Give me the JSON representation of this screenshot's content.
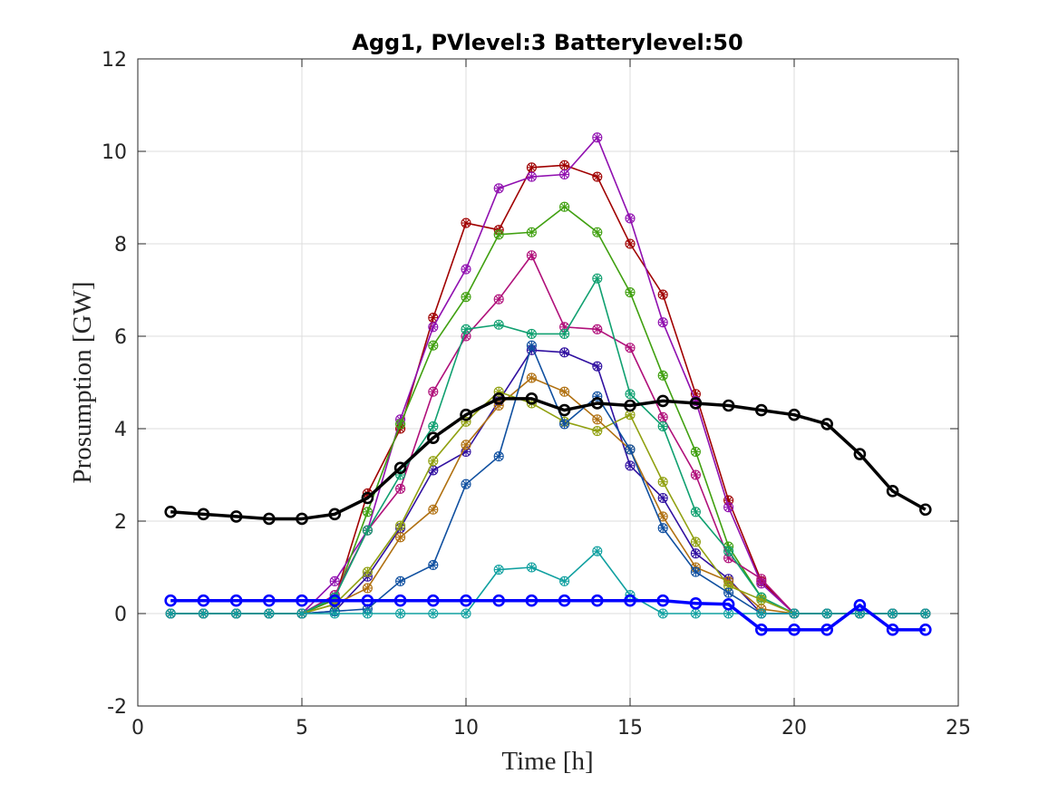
{
  "chart_data": {
    "type": "line",
    "title": "Agg1, PVlevel:3 Batterylevel:50",
    "xlabel": "Time [h]",
    "ylabel": "Prosumption [GW]",
    "xlim": [
      0,
      25
    ],
    "ylim": [
      -2,
      12
    ],
    "xticks": [
      "0",
      "5",
      "10",
      "15",
      "20",
      "25"
    ],
    "yticks": [
      "-2",
      "0",
      "2",
      "4",
      "6",
      "8",
      "10",
      "12"
    ],
    "grid": true,
    "legend": "none",
    "x": [
      1,
      2,
      3,
      4,
      5,
      6,
      7,
      8,
      9,
      10,
      11,
      12,
      13,
      14,
      15,
      16,
      17,
      18,
      19,
      20,
      21,
      22,
      23,
      24
    ],
    "series": [
      {
        "color": "#a00000",
        "marker": "asterisk",
        "values": [
          0,
          0,
          0,
          0,
          0,
          0.3,
          2.6,
          4.0,
          6.4,
          8.45,
          8.3,
          9.65,
          9.7,
          9.45,
          8.0,
          6.9,
          4.75,
          2.45,
          0.7,
          0,
          0,
          0,
          0,
          0
        ]
      },
      {
        "color": "#9010b0",
        "marker": "asterisk",
        "values": [
          0,
          0,
          0,
          0,
          0,
          0.7,
          1.8,
          4.2,
          6.2,
          7.45,
          9.2,
          9.45,
          9.5,
          10.3,
          8.55,
          6.3,
          4.6,
          2.3,
          0.65,
          0,
          0,
          0,
          0,
          0
        ]
      },
      {
        "color": "#40a010",
        "marker": "asterisk",
        "values": [
          0,
          0,
          0,
          0,
          0,
          0.3,
          2.2,
          4.1,
          5.8,
          6.85,
          8.2,
          8.25,
          8.8,
          8.25,
          6.95,
          5.15,
          3.5,
          1.45,
          0.35,
          0,
          0,
          0,
          0,
          0
        ]
      },
      {
        "color": "#b0107a",
        "marker": "asterisk",
        "values": [
          0,
          0,
          0,
          0,
          0,
          0.4,
          1.8,
          2.7,
          4.8,
          6.0,
          6.8,
          7.75,
          6.2,
          6.15,
          5.75,
          4.25,
          3.0,
          1.2,
          0.75,
          0,
          0,
          0,
          0,
          0
        ]
      },
      {
        "color": "#10a070",
        "marker": "asterisk",
        "values": [
          0,
          0,
          0,
          0,
          0,
          0.35,
          1.8,
          3.0,
          4.05,
          6.15,
          6.25,
          6.05,
          6.05,
          7.25,
          4.75,
          4.05,
          2.2,
          1.35,
          0.35,
          0,
          0,
          0,
          0,
          0
        ]
      },
      {
        "color": "#3010a0",
        "marker": "asterisk",
        "values": [
          0,
          0,
          0,
          0,
          0,
          0.05,
          0.8,
          1.85,
          3.1,
          3.5,
          4.6,
          5.7,
          5.65,
          5.35,
          3.2,
          2.5,
          1.3,
          0.75,
          0,
          0,
          0,
          0,
          0,
          0
        ]
      },
      {
        "color": "#b07010",
        "marker": "asterisk",
        "values": [
          0,
          0,
          0,
          0,
          0,
          0.2,
          0.55,
          1.65,
          2.25,
          3.65,
          4.5,
          5.1,
          4.8,
          4.2,
          3.55,
          2.1,
          1.0,
          0.7,
          0.1,
          0,
          0,
          0,
          0,
          0
        ]
      },
      {
        "color": "#90a010",
        "marker": "asterisk",
        "values": [
          0,
          0,
          0,
          0,
          0,
          0.2,
          0.9,
          1.9,
          3.3,
          4.15,
          4.8,
          4.55,
          4.15,
          3.95,
          4.3,
          2.85,
          1.55,
          0.6,
          0.3,
          0,
          0,
          0,
          0,
          0
        ]
      },
      {
        "color": "#1050a0",
        "marker": "asterisk",
        "values": [
          0,
          0,
          0,
          0,
          0,
          0.05,
          0.1,
          0.7,
          1.05,
          2.8,
          3.4,
          5.8,
          4.1,
          4.7,
          3.55,
          1.85,
          0.9,
          0.45,
          0,
          0,
          0,
          0,
          0,
          0
        ]
      },
      {
        "color": "#10a0a0",
        "marker": "asterisk",
        "values": [
          0,
          0,
          0,
          0,
          0,
          0,
          0,
          0,
          0,
          0,
          0.95,
          1.0,
          0.7,
          1.35,
          0.4,
          0,
          0,
          0,
          0,
          0,
          0,
          0,
          0,
          0
        ]
      },
      {
        "color": "#000000",
        "marker": "circle",
        "bold": true,
        "values": [
          2.2,
          2.15,
          2.1,
          2.05,
          2.05,
          2.15,
          2.5,
          3.15,
          3.8,
          4.3,
          4.65,
          4.65,
          4.4,
          4.55,
          4.5,
          4.6,
          4.55,
          4.5,
          4.4,
          4.3,
          4.1,
          3.45,
          2.65,
          2.25
        ]
      },
      {
        "color": "#0000ff",
        "marker": "circle",
        "bold": true,
        "values": [
          0.28,
          0.28,
          0.28,
          0.28,
          0.28,
          0.28,
          0.28,
          0.28,
          0.28,
          0.28,
          0.28,
          0.28,
          0.28,
          0.28,
          0.28,
          0.28,
          0.22,
          0.2,
          -0.35,
          -0.35,
          -0.35,
          0.18,
          -0.35,
          -0.35
        ]
      }
    ]
  }
}
